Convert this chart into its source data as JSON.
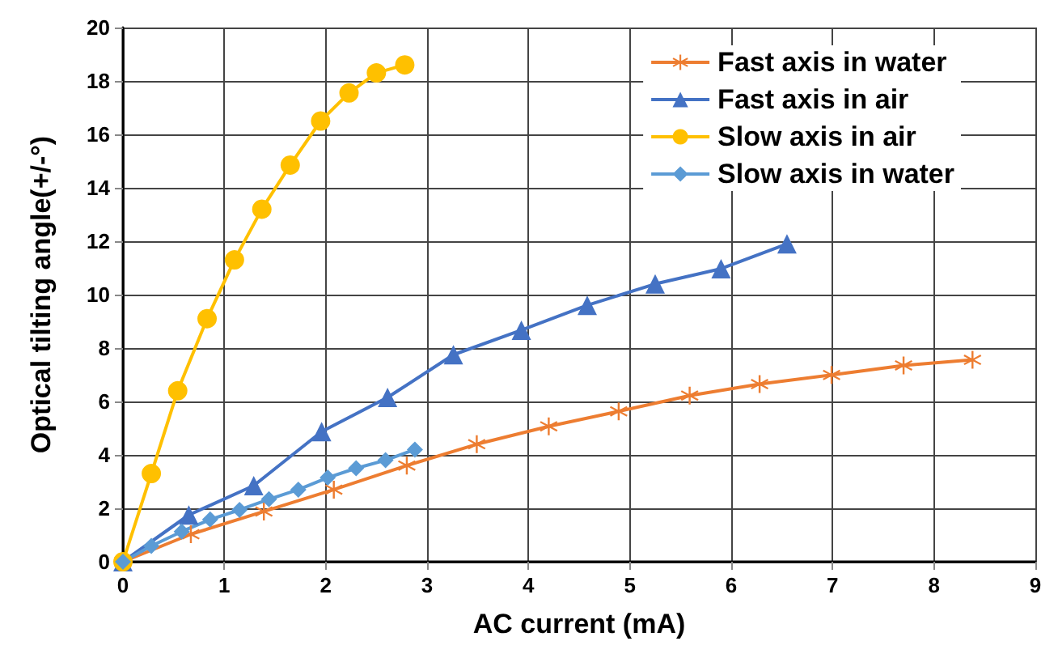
{
  "chart_data": {
    "type": "line",
    "xlabel": "AC current (mA)",
    "ylabel": "Optical tilting angle(+/-°)",
    "xlim": [
      0,
      9
    ],
    "xticks": [
      0,
      1,
      2,
      3,
      4,
      5,
      6,
      7,
      8,
      9
    ],
    "ylim": [
      0,
      20
    ],
    "yticks": [
      0,
      2,
      4,
      6,
      8,
      10,
      12,
      14,
      16,
      18,
      20
    ],
    "grid": true,
    "legend": "top right",
    "series": [
      {
        "name": "Fast axis in water",
        "color": "#ed7d31",
        "marker": "cross",
        "x": [
          0,
          0.67,
          1.39,
          2.08,
          2.8,
          3.49,
          4.2,
          4.89,
          5.59,
          6.28,
          6.99,
          7.7,
          8.38
        ],
        "values": [
          0,
          1.03,
          1.88,
          2.7,
          3.6,
          4.4,
          5.07,
          5.63,
          6.22,
          6.65,
          6.99,
          7.35,
          7.56
        ]
      },
      {
        "name": "Fast axis in air",
        "color": "#4472c4",
        "marker": "triangle",
        "x": [
          0,
          0.65,
          1.29,
          1.96,
          2.61,
          3.26,
          3.93,
          4.58,
          5.25,
          5.9,
          6.55
        ],
        "values": [
          0,
          1.75,
          2.85,
          4.87,
          6.15,
          7.75,
          8.67,
          9.6,
          10.4,
          10.97,
          11.9
        ]
      },
      {
        "name": "Slow axis in air",
        "color": "#ffc000",
        "marker": "circle",
        "x": [
          0,
          0.28,
          0.54,
          0.83,
          1.1,
          1.37,
          1.65,
          1.95,
          2.23,
          2.5,
          2.78
        ],
        "values": [
          0,
          3.3,
          6.4,
          9.1,
          11.3,
          13.2,
          14.85,
          16.5,
          17.55,
          18.3,
          18.6
        ]
      },
      {
        "name": "Slow axis in water",
        "color": "#5b9bd5",
        "marker": "diamond",
        "x": [
          0,
          0.28,
          0.58,
          0.86,
          1.15,
          1.44,
          1.73,
          2.02,
          2.3,
          2.59,
          2.88
        ],
        "values": [
          0,
          0.59,
          1.13,
          1.58,
          1.94,
          2.34,
          2.7,
          3.15,
          3.5,
          3.8,
          4.2
        ]
      }
    ]
  }
}
